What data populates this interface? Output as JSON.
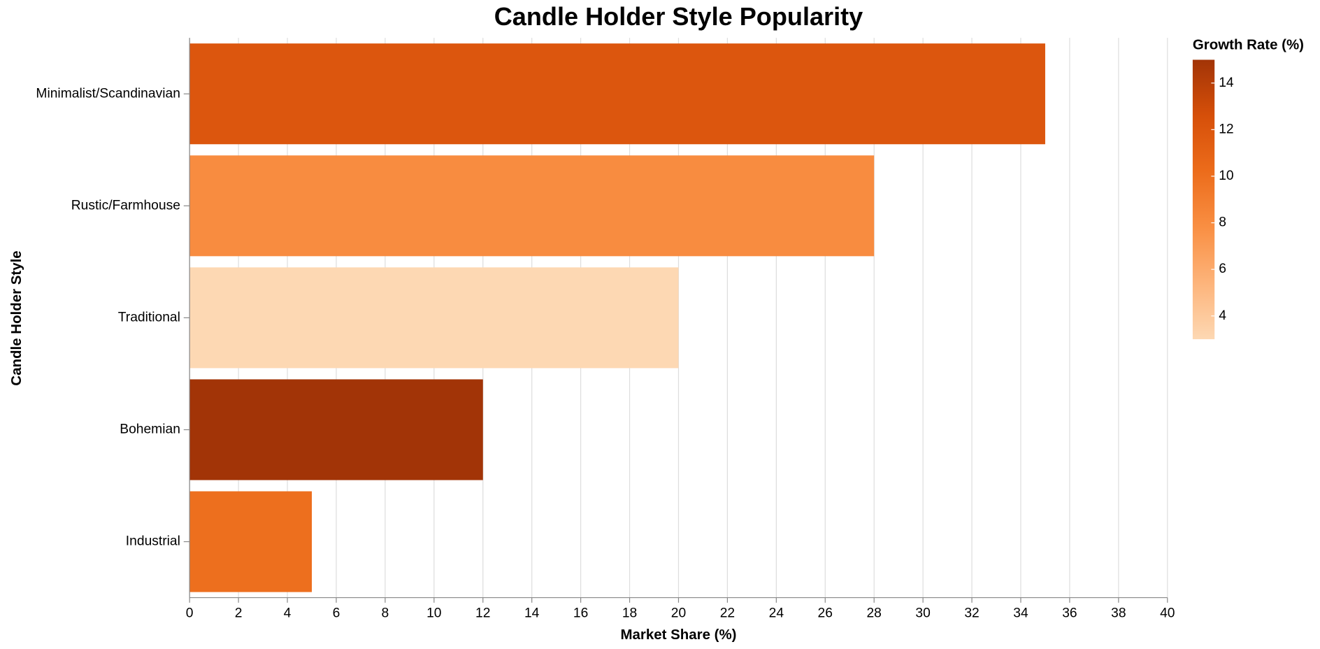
{
  "chart_data": {
    "type": "bar",
    "orientation": "horizontal",
    "title": "Candle Holder Style Popularity",
    "x_label": "Market Share (%)",
    "y_label": "Candle Holder Style",
    "categories": [
      "Minimalist/Scandinavian",
      "Rustic/Farmhouse",
      "Traditional",
      "Bohemian",
      "Industrial"
    ],
    "values": [
      35,
      28,
      20,
      12,
      5
    ],
    "color_values": [
      12,
      8,
      3,
      15,
      10
    ],
    "color_legend_title": "Growth Rate (%)",
    "color_lim": [
      3,
      15
    ],
    "color_ticks": [
      4,
      6,
      8,
      10,
      12,
      14
    ],
    "colors": [
      "#fdd8b3",
      "#fdb47b",
      "#f98f43",
      "#ec6c1b",
      "#d64f09",
      "#a23407"
    ],
    "xlim": [
      0,
      40
    ],
    "xticks": [
      0,
      2,
      4,
      6,
      8,
      10,
      12,
      14,
      16,
      18,
      20,
      22,
      24,
      26,
      28,
      30,
      32,
      34,
      36,
      38,
      40
    ],
    "grid": true
  }
}
